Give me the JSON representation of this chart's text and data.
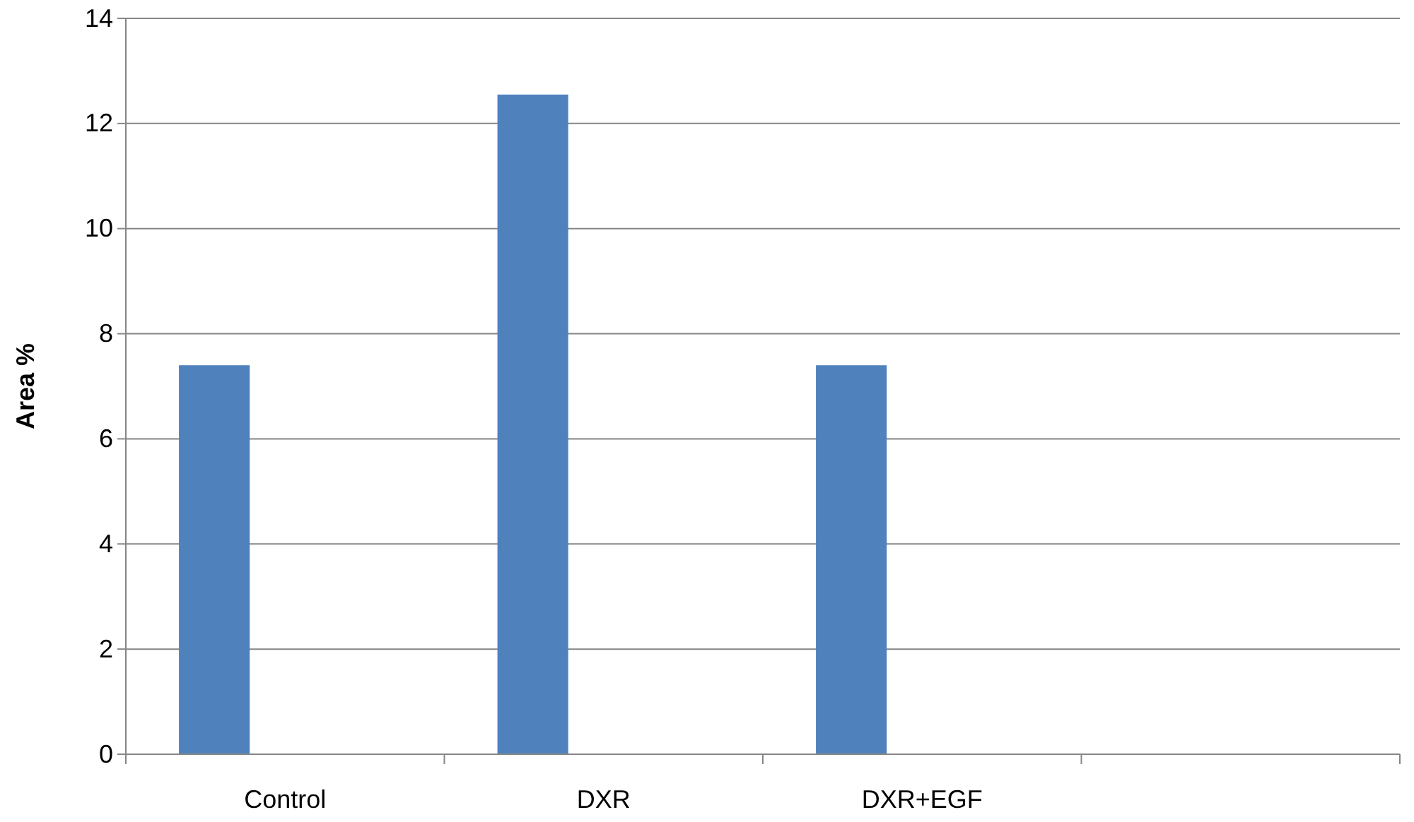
{
  "chart_data": {
    "type": "bar",
    "ylabel": "Area %",
    "categories": [
      "Control",
      "DXR",
      "DXR+EGF",
      null
    ],
    "series": [
      {
        "color": "#4f81bd",
        "values": [
          7.4,
          12.55,
          7.4,
          null
        ]
      },
      {
        "values": [
          null,
          null,
          null,
          null
        ]
      },
      {
        "values": [
          null,
          null,
          null,
          null
        ]
      }
    ],
    "ylim": [
      0,
      14
    ],
    "yticks": [
      0,
      2,
      4,
      6,
      8,
      10,
      12,
      14
    ],
    "grid": "y"
  }
}
